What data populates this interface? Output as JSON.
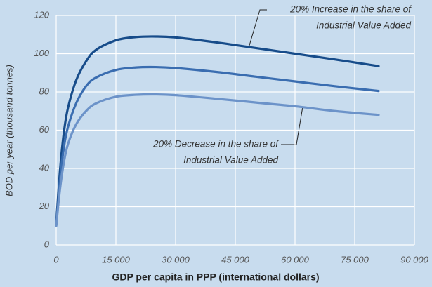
{
  "chart_data": {
    "type": "line",
    "xlabel": "GDP per capita in PPP (international dollars)",
    "ylabel": "BOD per year (thousand tonnes)",
    "annotations": [
      {
        "lines": [
          "20% Increase in the share of",
          "Industrial Value Added"
        ]
      },
      {
        "lines": [
          "20% Decrease in the share of",
          "Industrial Value Added"
        ]
      }
    ],
    "x": [
      0,
      1000,
      2000,
      3000,
      5000,
      7500,
      10000,
      15000,
      20000,
      25000,
      30000,
      40000,
      50000,
      60000,
      70000,
      81000
    ],
    "series": [
      {
        "color": "#174c8a",
        "values": [
          11,
          40,
          60,
          72,
          86,
          96,
          102,
          107,
          108.7,
          109,
          108.5,
          106,
          103,
          100,
          97,
          93.5
        ]
      },
      {
        "color": "#3a6db0",
        "values": [
          10,
          35,
          52,
          62,
          74,
          83,
          87.5,
          91.5,
          92.8,
          93,
          92.5,
          90.5,
          88,
          85.5,
          83,
          80.5
        ]
      },
      {
        "color": "#6c93c9",
        "values": [
          10,
          30,
          44,
          53,
          63,
          70,
          74,
          77.5,
          78.5,
          78.7,
          78.3,
          76.5,
          74.5,
          72.5,
          70,
          68
        ]
      }
    ],
    "xlim": [
      0,
      90000
    ],
    "xticks": [
      0,
      {
        "value": 15000,
        "label": "15 000"
      },
      {
        "value": 30000,
        "label": "30 000"
      },
      {
        "value": 45000,
        "label": "45 000"
      },
      {
        "value": 60000,
        "label": "60 000"
      },
      {
        "value": 75000,
        "label": "75 000"
      },
      {
        "value": 90000,
        "label": "90 000"
      }
    ],
    "ylim": [
      0,
      120
    ],
    "yticks": [
      0,
      20,
      40,
      60,
      80,
      100,
      120
    ],
    "grid": true
  }
}
